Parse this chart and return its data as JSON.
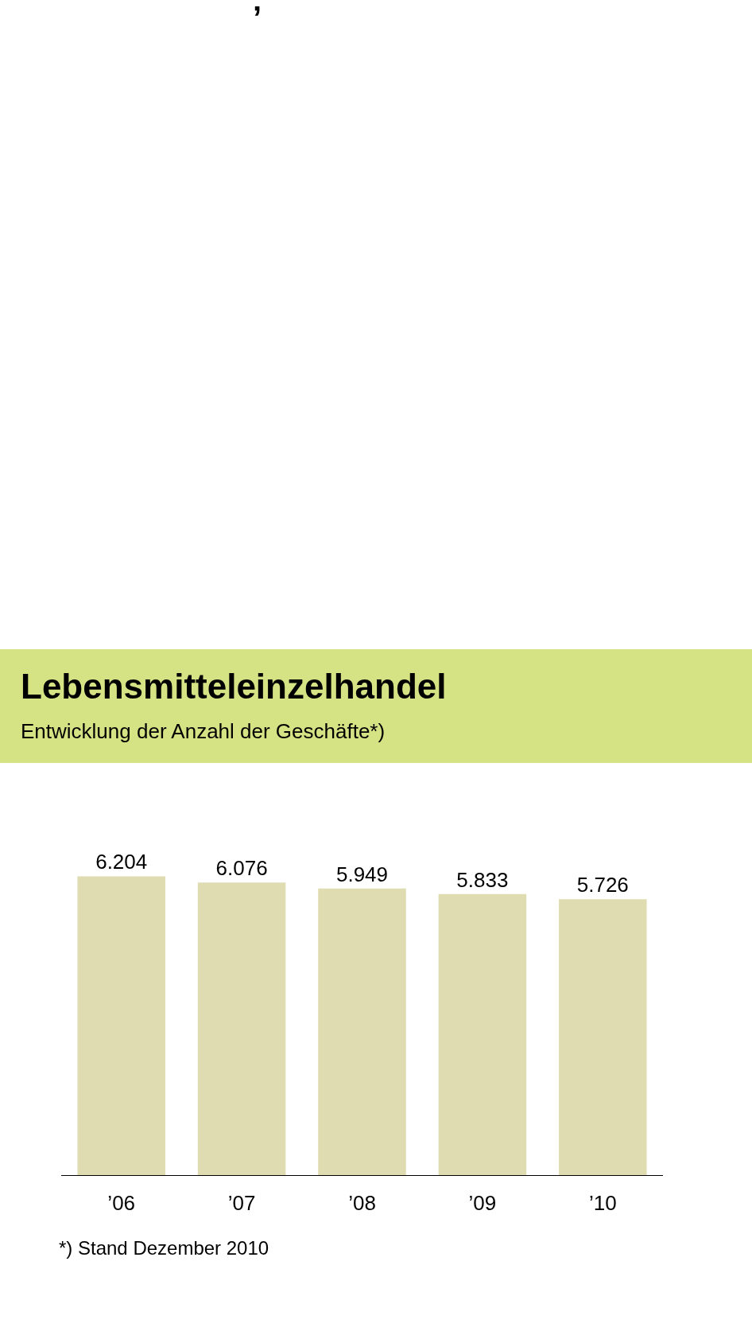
{
  "chart_data": {
    "type": "bar",
    "title": "Lebensmitteleinzelhandel",
    "subtitle": "Entwicklung der Anzahl der Geschäfte*)",
    "categories": [
      "’06",
      "’07",
      "’08",
      "’09",
      "’10"
    ],
    "values": [
      6204,
      6076,
      5949,
      5833,
      5726
    ],
    "value_labels": [
      "6.204",
      "6.076",
      "5.949",
      "5.833",
      "5.726"
    ],
    "color": "#e0dcb2",
    "annotations": [
      "’",
      "*) Stand Dezember 2010"
    ]
  }
}
